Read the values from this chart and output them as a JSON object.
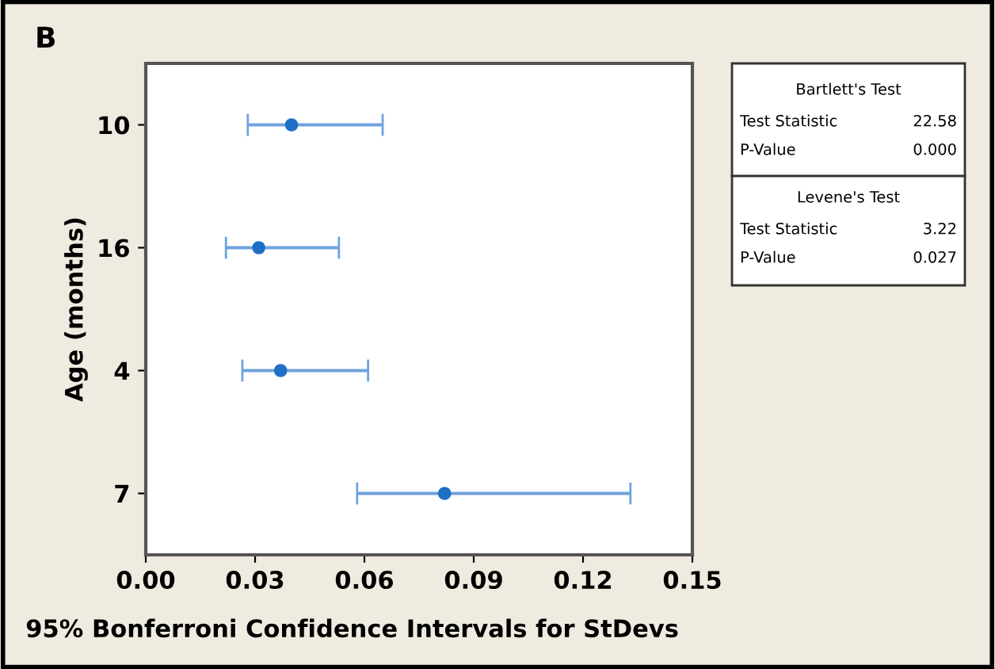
{
  "chart_data": {
    "type": "scatter",
    "orientation": "horizontal",
    "ylabel": "Age (months)",
    "xlabel": "95% Bonferroni Confidence Intervals for StDevs",
    "categories": [
      "10",
      "16",
      "4",
      "7"
    ],
    "values": [
      0.04,
      0.031,
      0.037,
      0.082
    ],
    "errors": [
      [
        0.028,
        0.065
      ],
      [
        0.022,
        0.053
      ],
      [
        0.0265,
        0.061
      ],
      [
        0.058,
        0.133
      ]
    ],
    "color": "#1f6fc5",
    "marker": "circle",
    "grid": false,
    "xlim": [
      0,
      0.15
    ],
    "xticks": [
      {
        "value": 0,
        "label": "0.00"
      },
      {
        "value": 0.03,
        "label": "0.03"
      },
      {
        "value": 0.06,
        "label": "0.06"
      },
      {
        "value": 0.09,
        "label": "0.09"
      },
      {
        "value": 0.12,
        "label": "0.12"
      },
      {
        "value": 0.15,
        "label": "0.15"
      }
    ],
    "annotations": [
      "B",
      "Bartlett's Test",
      "Test Statistic",
      "22.58",
      "P-Value",
      "0.000",
      "Levene's Test",
      "Test Statistic",
      "3.22",
      "P-Value",
      "0.027"
    ]
  }
}
